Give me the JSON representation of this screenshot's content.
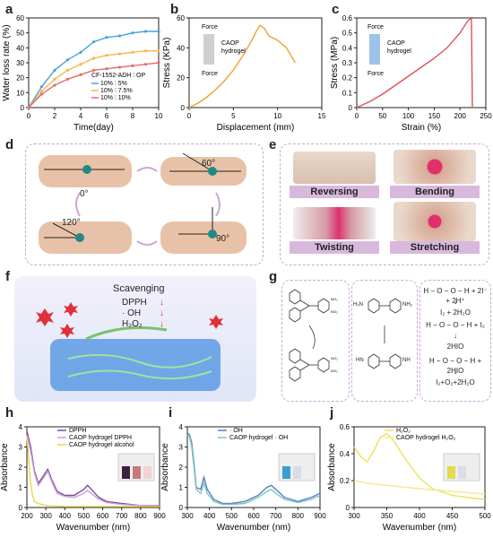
{
  "panels": {
    "a": "a",
    "b": "b",
    "c": "c",
    "d": "d",
    "e": "e",
    "f": "f",
    "g": "g",
    "h": "h",
    "i": "i",
    "j": "j"
  },
  "chart_data": [
    {
      "id": "a",
      "type": "line",
      "xlabel": "Time(day)",
      "ylabel": "Water loss rate (%)",
      "xlim": [
        0,
        10
      ],
      "ylim": [
        0,
        60
      ],
      "xticks": [
        0,
        2,
        4,
        6,
        8,
        10
      ],
      "yticks": [
        0,
        10,
        20,
        30,
        40,
        50,
        60
      ],
      "legend_title": "CF-1552-ADH",
      "legend_op": "OP",
      "legend_placement": "bottom-right",
      "x": [
        0,
        1,
        2,
        3,
        4,
        5,
        6,
        7,
        8,
        9,
        10
      ],
      "series": [
        {
          "name": "10% ∶ 5%",
          "color": "#4aa3df",
          "values": [
            0,
            14,
            25,
            32,
            37,
            44,
            47,
            48,
            50,
            51,
            51
          ]
        },
        {
          "name": "10% ∶ 7.5%",
          "color": "#f2b84b",
          "values": [
            0,
            11,
            19,
            25,
            29,
            33,
            35,
            36,
            37,
            38,
            38
          ]
        },
        {
          "name": "10% ∶ 10%",
          "color": "#e96a6a",
          "values": [
            0,
            9,
            15,
            19,
            22,
            25,
            26,
            27,
            28,
            29,
            30
          ]
        }
      ]
    },
    {
      "id": "b",
      "type": "line",
      "xlabel": "Displacement (mm)",
      "ylabel": "Stress (KPa)",
      "xlim": [
        0,
        15
      ],
      "ylim": [
        0,
        60
      ],
      "xticks": [
        0,
        5,
        10,
        15
      ],
      "yticks": [
        0,
        20,
        40,
        60
      ],
      "inset_labels": {
        "top": "Force",
        "bottom": "Force",
        "name": "CAOP\nhydrogel"
      },
      "series": [
        {
          "name": "",
          "color": "#f0a030",
          "x": [
            0,
            1,
            2,
            3,
            4,
            5,
            6,
            7,
            7.5,
            8,
            8.5,
            9,
            10,
            11,
            12
          ],
          "values": [
            0,
            3,
            7,
            12,
            18,
            25,
            34,
            44,
            50,
            55,
            53,
            48,
            45,
            40,
            30
          ]
        }
      ]
    },
    {
      "id": "c",
      "type": "line",
      "xlabel": "Strain (%)",
      "ylabel": "Stress (MPa)",
      "xlim": [
        0,
        250
      ],
      "ylim": [
        0,
        0.6
      ],
      "xticks": [
        0,
        50,
        100,
        150,
        200,
        250
      ],
      "yticks": [
        0.0,
        0.1,
        0.2,
        0.3,
        0.4,
        0.5,
        0.6
      ],
      "inset_labels": {
        "top": "Force",
        "bottom": "Force",
        "name": "CAOP\nhydrogel"
      },
      "series": [
        {
          "name": "",
          "color": "#e0505a",
          "x": [
            0,
            25,
            50,
            75,
            100,
            125,
            150,
            175,
            200,
            215,
            222,
            224
          ],
          "values": [
            0,
            0.04,
            0.09,
            0.15,
            0.21,
            0.27,
            0.33,
            0.4,
            0.5,
            0.58,
            0.6,
            0
          ]
        }
      ]
    },
    {
      "id": "h",
      "type": "line",
      "xlabel": "Wavenumber (nm)",
      "ylabel": "Absorbance",
      "xlim": [
        200,
        900
      ],
      "ylim": [
        0,
        4
      ],
      "xticks": [
        200,
        300,
        400,
        500,
        600,
        700,
        800,
        900
      ],
      "yticks": [
        0,
        1,
        2,
        3,
        4
      ],
      "series": [
        {
          "name": "DPPH",
          "color": "#7b4a9c",
          "x": [
            200,
            220,
            240,
            260,
            290,
            310,
            330,
            360,
            400,
            450,
            500,
            520,
            540,
            580,
            620,
            700,
            800,
            900
          ],
          "values": [
            3.8,
            3.0,
            1.8,
            1.2,
            1.6,
            1.9,
            1.4,
            0.8,
            0.6,
            0.6,
            0.9,
            1.1,
            0.9,
            0.5,
            0.3,
            0.2,
            0.1,
            0.1
          ]
        },
        {
          "name": "CAOP hydrogel DPPH",
          "color": "#c9a0dc",
          "x": [
            200,
            220,
            240,
            260,
            290,
            310,
            330,
            360,
            400,
            450,
            500,
            520,
            540,
            580,
            620,
            700,
            800,
            900
          ],
          "values": [
            3.6,
            2.8,
            1.7,
            1.1,
            1.5,
            1.8,
            1.3,
            0.7,
            0.55,
            0.5,
            0.7,
            0.85,
            0.7,
            0.4,
            0.25,
            0.15,
            0.1,
            0.08
          ]
        },
        {
          "name": "CAOP hydrogel alcohol",
          "color": "#e6d94a",
          "x": [
            200,
            210,
            220,
            230,
            240,
            260,
            300,
            400,
            500,
            600,
            700,
            800,
            900
          ],
          "values": [
            3.5,
            2.4,
            1.2,
            0.6,
            0.3,
            0.2,
            0.1,
            0.05,
            0.05,
            0.05,
            0.05,
            0.05,
            0.05
          ]
        }
      ]
    },
    {
      "id": "i",
      "type": "line",
      "xlabel": "Wavenumber (nm)",
      "ylabel": "Absorbance",
      "xlim": [
        300,
        900
      ],
      "ylim": [
        0,
        4
      ],
      "xticks": [
        300,
        400,
        500,
        600,
        700,
        800,
        900
      ],
      "yticks": [
        0,
        1,
        2,
        3,
        4
      ],
      "series": [
        {
          "name": "· OH",
          "color": "#5a7fc0",
          "x": [
            300,
            310,
            320,
            330,
            340,
            360,
            375,
            390,
            420,
            460,
            500,
            560,
            620,
            660,
            680,
            700,
            740,
            800,
            860,
            900
          ],
          "values": [
            3.7,
            3.6,
            3.2,
            2.2,
            1.0,
            0.9,
            1.5,
            0.9,
            0.4,
            0.2,
            0.2,
            0.3,
            0.6,
            1.0,
            1.1,
            0.9,
            0.5,
            0.3,
            0.5,
            0.7
          ]
        },
        {
          "name": "CAOP hydrogel · OH",
          "color": "#7cc6c4",
          "x": [
            300,
            310,
            320,
            330,
            340,
            360,
            375,
            390,
            420,
            460,
            500,
            560,
            620,
            660,
            680,
            700,
            740,
            800,
            860,
            900
          ],
          "values": [
            3.6,
            3.5,
            3.0,
            2.0,
            0.9,
            0.7,
            1.2,
            0.7,
            0.3,
            0.15,
            0.15,
            0.2,
            0.5,
            0.8,
            0.9,
            0.7,
            0.4,
            0.25,
            0.4,
            0.6
          ]
        }
      ]
    },
    {
      "id": "j",
      "type": "line",
      "xlabel": "Wavenumber (nm)",
      "ylabel": "Absorbance",
      "xlim": [
        300,
        500
      ],
      "ylim": [
        0,
        0.6
      ],
      "xticks": [
        300,
        350,
        400,
        450,
        500
      ],
      "yticks": [
        0.0,
        0.2,
        0.4,
        0.6
      ],
      "series": [
        {
          "name": "H₂O₂",
          "color": "#f0e05a",
          "x": [
            300,
            310,
            320,
            330,
            340,
            350,
            360,
            380,
            400,
            420,
            450,
            480,
            500
          ],
          "values": [
            0.45,
            0.38,
            0.34,
            0.42,
            0.52,
            0.55,
            0.5,
            0.35,
            0.22,
            0.14,
            0.09,
            0.07,
            0.06
          ]
        },
        {
          "name": "CAOP hydrogel H₂O₂",
          "color": "#f5ea8a",
          "x": [
            300,
            320,
            340,
            360,
            380,
            400,
            450,
            500
          ],
          "values": [
            0.2,
            0.18,
            0.17,
            0.16,
            0.15,
            0.14,
            0.12,
            0.1
          ]
        }
      ]
    }
  ],
  "d": {
    "angles": [
      "0°",
      "60°",
      "120°",
      "90°"
    ]
  },
  "e": {
    "labels": [
      "Reversing",
      "Bending",
      "Twisting",
      "Stretching"
    ]
  },
  "f": {
    "title": "Scavenging",
    "items": [
      "DPPH",
      "· OH",
      "H₂O₂"
    ]
  },
  "g": {
    "eq1": "H − O − O − H + 2I⁻ + 2H⁺",
    "eq2": "I₂ + 2H₂O",
    "eq3": "H − O − O − H + I₂",
    "eq4": "2HIO",
    "eq5": "H − O − O − H + 2HIO",
    "eq6": "I₂+O₂+2H₂O",
    "amine_l": "H₂N",
    "amine_r": "NH₂",
    "imine_l": "HN",
    "imine_r": "NH",
    "no2": "NO₂"
  }
}
